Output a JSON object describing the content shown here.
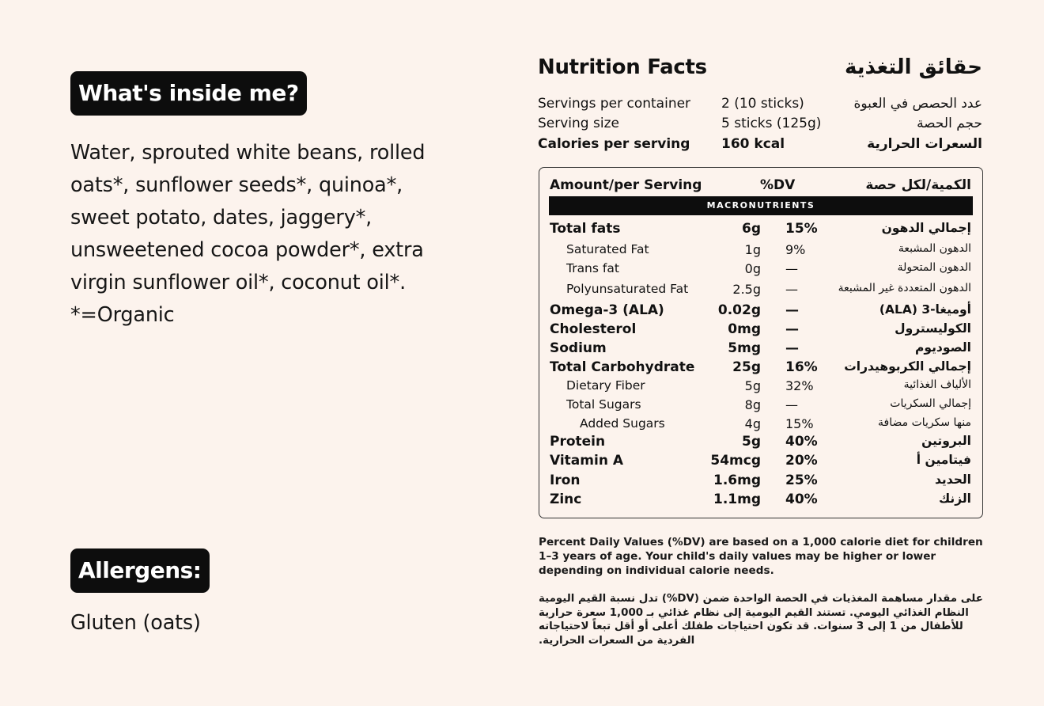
{
  "left": {
    "ingredients_heading": "What's inside me?",
    "ingredients_text": "Water, sprouted white beans, rolled oats*, sunflower seeds*, quinoa*, sweet potato, dates, jaggery*, unsweetened cocoa powder*, extra virgin sunflower oil*, coconut oil*.",
    "organic_note": "*=Organic",
    "allergens_heading": "Allergens:",
    "allergens_text": "Gluten (oats)"
  },
  "nutrition": {
    "title_en": "Nutrition Facts",
    "title_ar": "حقائق التغذية",
    "summary": [
      {
        "en": "Servings per container",
        "value": "2 (10 sticks)",
        "ar": "عدد الحصص في العبوة",
        "bold": false
      },
      {
        "en": "Serving size",
        "value": "5 sticks (125g)",
        "ar": "حجم الحصة",
        "bold": false
      },
      {
        "en": "Calories per serving",
        "value": "160 kcal",
        "ar": "السعرات الحرارية",
        "bold": true
      }
    ],
    "table_header": {
      "en": "Amount/per Serving",
      "dv": "%DV",
      "ar": "الكمية/لكل حصة"
    },
    "section_label": "MACRONUTRIENTS",
    "rows": [
      {
        "name": "Total fats",
        "amount": "6g",
        "dv": "15%",
        "ar": "إجمالي الدهون",
        "level": 0
      },
      {
        "name": "Saturated Fat",
        "amount": "1g",
        "dv": "9%",
        "ar": "الدهون المشبعة",
        "level": 1
      },
      {
        "name": "Trans fat",
        "amount": "0g",
        "dv": "—",
        "ar": "الدهون المتحولة",
        "level": 1
      },
      {
        "name": "Polyunsaturated Fat",
        "amount": "2.5g",
        "dv": "—",
        "ar": "الدهون المتعددة غير المشبعة",
        "level": 1
      },
      {
        "name": "Omega-3 (ALA)",
        "amount": "0.02g",
        "dv": "—",
        "ar": "أوميغا-3 (ALA)",
        "level": 0
      },
      {
        "name": "Cholesterol",
        "amount": "0mg",
        "dv": "—",
        "ar": "الكوليسترول",
        "level": 0
      },
      {
        "name": "Sodium",
        "amount": "5mg",
        "dv": "—",
        "ar": "الصوديوم",
        "level": 0
      },
      {
        "name": "Total Carbohydrate",
        "amount": "25g",
        "dv": "16%",
        "ar": "إجمالي الكربوهيدرات",
        "level": 0
      },
      {
        "name": "Dietary Fiber",
        "amount": "5g",
        "dv": "32%",
        "ar": "الألياف الغذائية",
        "level": 1
      },
      {
        "name": "Total Sugars",
        "amount": "8g",
        "dv": "—",
        "ar": "إجمالي السكريات",
        "level": 1
      },
      {
        "name": "Added Sugars",
        "amount": "4g",
        "dv": "15%",
        "ar": "منها سكريات مضافة",
        "level": 2
      },
      {
        "name": "Protein",
        "amount": "5g",
        "dv": "40%",
        "ar": "البروتين",
        "level": 0
      },
      {
        "name": "Vitamin A",
        "amount": "54mcg",
        "dv": "20%",
        "ar": "فيتامين أ",
        "level": 0
      },
      {
        "name": "Iron",
        "amount": "1.6mg",
        "dv": "25%",
        "ar": "الحديد",
        "level": 0
      },
      {
        "name": "Zinc",
        "amount": "1.1mg",
        "dv": "40%",
        "ar": "الزنك",
        "level": 0
      }
    ],
    "footnote_en": "Percent Daily Values (%DV) are based on a 1,000 calorie diet for children 1–3 years of age. Your child's daily values may be higher or lower depending on individual calorie needs.",
    "footnote_ar": "على مقدار مساهمة المغذيات في الحصة الواحدة ضمن (DV%) تدل نسبة القيم اليومية النظام الغذائي اليومي. تستند القيم اليومية إلى نظام غذائي بـ 1,000 سعرة حرارية للأطفال من 1 إلى 3 سنوات. قد تكون احتياجات طفلك أعلى أو أقل تبعاً لاحتياجاته الفردية من السعرات الحرارية."
  }
}
